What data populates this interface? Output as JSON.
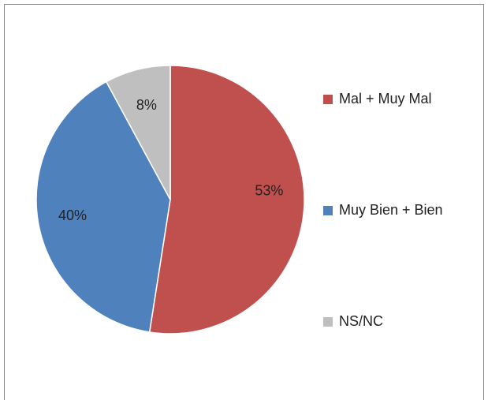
{
  "chart_data": {
    "type": "pie",
    "categories": [
      "Mal + Muy Mal",
      "Muy Bien + Bien",
      "NS/NC"
    ],
    "values": [
      53,
      40,
      8
    ],
    "value_labels": [
      "53%",
      "40%",
      "8%"
    ],
    "colors": [
      "#c0504d",
      "#4f81bd",
      "#bfbfbf"
    ],
    "legend": "right"
  }
}
